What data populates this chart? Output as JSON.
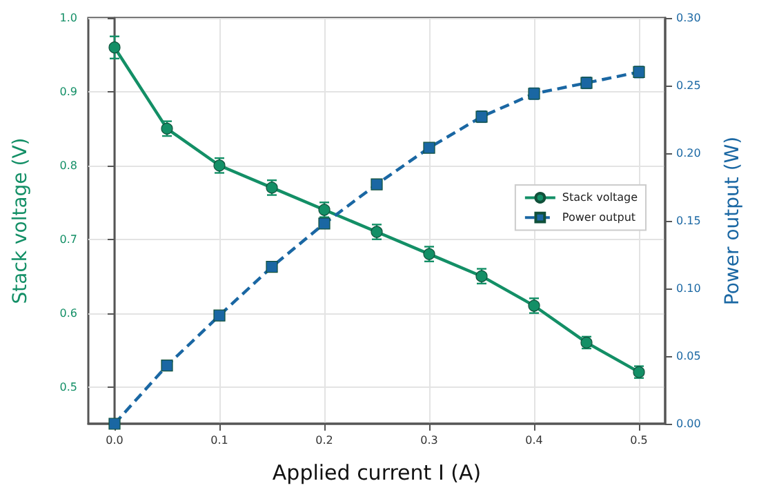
{
  "chart_data": {
    "type": "line",
    "xlabel": "Applied current I (A)",
    "ylabel": "Stack voltage (V)",
    "y2label": "Power output (W)",
    "x": [
      0,
      0.05,
      0.1,
      0.15,
      0.2,
      0.25,
      0.3,
      0.35,
      0.4,
      0.45,
      0.5
    ],
    "series": [
      {
        "name": "Stack voltage",
        "color": "#138f66",
        "marker": "circle",
        "line_style": "solid",
        "values": [
          0.96,
          0.85,
          0.8,
          0.77,
          0.74,
          0.71,
          0.68,
          0.65,
          0.61,
          0.56,
          0.52
        ],
        "errors": [
          0.015,
          0.01,
          0.01,
          0.01,
          0.01,
          0.01,
          0.01,
          0.01,
          0.01,
          0.008,
          0.008
        ]
      },
      {
        "name": "Power output",
        "color": "#1a67a3",
        "marker": "square",
        "line_style": "dashed",
        "axis": "y2",
        "values": [
          0,
          0.043,
          0.08,
          0.116,
          0.148,
          0.177,
          0.204,
          0.227,
          0.244,
          0.252,
          0.26
        ],
        "errors": [
          0.003,
          0.003,
          0.003,
          0.003,
          0.003,
          0.003,
          0.003,
          0.004,
          0.004,
          0.004,
          0.004
        ]
      }
    ],
    "xlim": [
      -0.025,
      0.525
    ],
    "xticks": [
      {
        "value": 0,
        "label": "0.0"
      },
      0.1,
      0.2,
      0.3,
      0.4,
      0.5
    ],
    "ylim": [
      0.45,
      1.0
    ],
    "yticks": [
      0.5,
      0.6,
      0.7,
      0.8,
      0.9,
      {
        "value": 1.0,
        "label": "1.0"
      }
    ],
    "y2lim": [
      0,
      0.3
    ],
    "y2ticks": [
      {
        "value": 0,
        "label": "0.00"
      },
      {
        "value": 0.05,
        "label": "0.05"
      },
      {
        "value": 0.1,
        "label": "0.10"
      },
      {
        "value": 0.15,
        "label": "0.15"
      },
      {
        "value": 0.2,
        "label": "0.20"
      },
      {
        "value": 0.25,
        "label": "0.25"
      },
      {
        "value": 0.3,
        "label": "0.30"
      }
    ],
    "grid": true,
    "legend": "right"
  }
}
